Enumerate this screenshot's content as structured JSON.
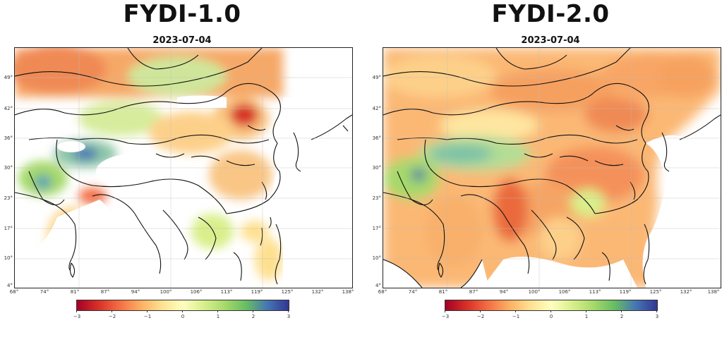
{
  "panels": [
    {
      "title": "FYDI-1.0",
      "date": "2023-07-04",
      "lat_ticks": [
        "49°",
        "42°",
        "36°",
        "30°",
        "23°",
        "17°",
        "10°",
        "4°"
      ],
      "lon_ticks": [
        "68°",
        "74°",
        "81°",
        "87°",
        "94°",
        "100°",
        "106°",
        "113°",
        "119°",
        "125°",
        "132°",
        "138°"
      ],
      "colorbar_ticks": [
        "−3",
        "−2",
        "−1",
        "0",
        "1",
        "2",
        "3"
      ],
      "colorbar_range": [
        -3,
        3
      ],
      "colormap": "RdYlBu"
    },
    {
      "title": "FYDI-2.0",
      "date": "2023-07-04",
      "lat_ticks": [
        "49°",
        "42°",
        "36°",
        "30°",
        "23°",
        "17°",
        "10°",
        "4°"
      ],
      "lon_ticks": [
        "68°",
        "74°",
        "81°",
        "87°",
        "94°",
        "100°",
        "106°",
        "113°",
        "119°",
        "125°",
        "132°",
        "138°"
      ],
      "colorbar_ticks": [
        "−3",
        "−2",
        "−1",
        "0",
        "1",
        "2",
        "3"
      ],
      "colorbar_range": [
        -3,
        3
      ],
      "colormap": "RdYlBu"
    }
  ],
  "colors": {
    "deep_red": "#a50026",
    "red": "#d73027",
    "orange": "#f46d43",
    "light_orange": "#fdae61",
    "yellow": "#fee090",
    "pale": "#ffffbf",
    "light_green": "#d9ef8b",
    "green": "#a6d96a",
    "teal": "#66bd63",
    "blue": "#4575b4",
    "deep_blue": "#313695"
  }
}
